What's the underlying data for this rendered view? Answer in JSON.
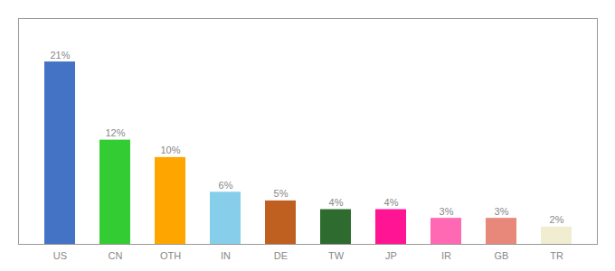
{
  "chart_data": {
    "type": "bar",
    "categories": [
      "US",
      "CN",
      "OTH",
      "IN",
      "DE",
      "TW",
      "JP",
      "IR",
      "GB",
      "TR"
    ],
    "values": [
      21,
      12,
      10,
      6,
      5,
      4,
      4,
      3,
      3,
      2
    ],
    "value_labels": [
      "21%",
      "12%",
      "10%",
      "6%",
      "5%",
      "4%",
      "4%",
      "3%",
      "3%",
      "2%"
    ],
    "colors": [
      "#4472C4",
      "#33CC33",
      "#FFA500",
      "#87CEEB",
      "#C06020",
      "#2E6B2E",
      "#FF1493",
      "#FF69B4",
      "#E8887A",
      "#F0EDD0"
    ],
    "ylim": [
      0,
      26
    ],
    "grid": false,
    "data_labels": true,
    "tick_labels": "x"
  }
}
